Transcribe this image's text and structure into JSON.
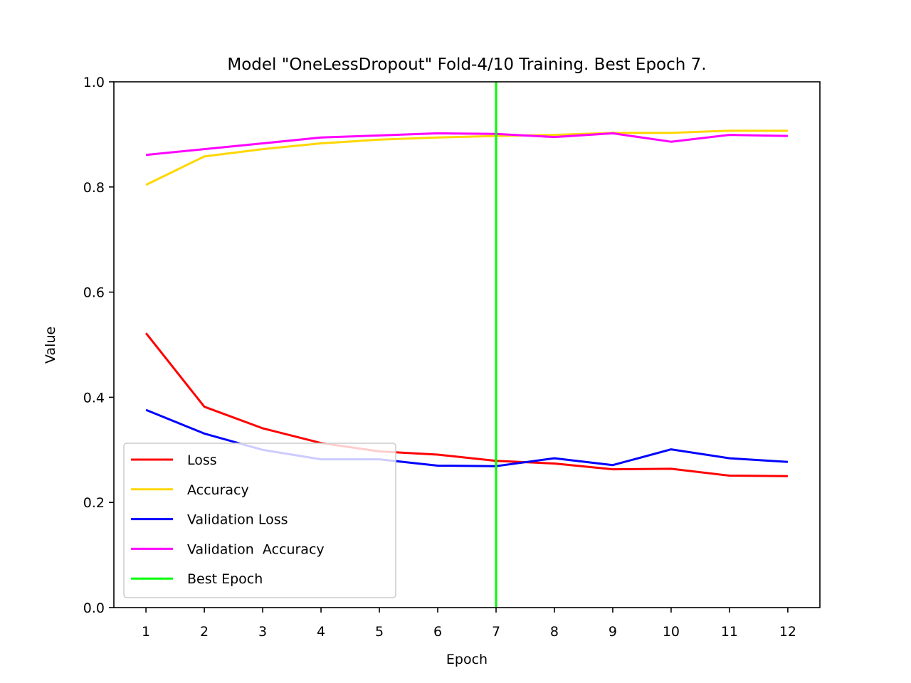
{
  "chart_data": {
    "type": "line",
    "title": "Model \"OneLessDropout\" Fold-4/10 Training. Best Epoch 7.",
    "xlabel": "Epoch",
    "ylabel": "Value",
    "x": [
      1,
      2,
      3,
      4,
      5,
      6,
      7,
      8,
      9,
      10,
      11,
      12
    ],
    "xlim": [
      0.45,
      12.55
    ],
    "ylim": [
      0.0,
      1.0
    ],
    "xticks": [
      "1",
      "2",
      "3",
      "4",
      "5",
      "6",
      "7",
      "8",
      "9",
      "10",
      "11",
      "12"
    ],
    "yticks": [
      "0.0",
      "0.2",
      "0.4",
      "0.6",
      "0.8",
      "1.0"
    ],
    "grid": false,
    "legend_position": "lower-left",
    "series": [
      {
        "name": "Loss",
        "color": "#ff0000",
        "values": [
          0.522,
          0.382,
          0.341,
          0.313,
          0.297,
          0.291,
          0.279,
          0.274,
          0.263,
          0.264,
          0.251,
          0.25
        ]
      },
      {
        "name": "Accuracy",
        "color": "#ffd700",
        "values": [
          0.804,
          0.858,
          0.872,
          0.883,
          0.89,
          0.894,
          0.897,
          0.899,
          0.903,
          0.903,
          0.907,
          0.907
        ]
      },
      {
        "name": "Validation Loss",
        "color": "#0000ff",
        "values": [
          0.376,
          0.331,
          0.3,
          0.282,
          0.282,
          0.27,
          0.269,
          0.284,
          0.271,
          0.301,
          0.284,
          0.277
        ]
      },
      {
        "name": "Validation  Accuracy",
        "color": "#ff00ff",
        "values": [
          0.861,
          0.872,
          0.883,
          0.894,
          0.898,
          0.902,
          0.901,
          0.895,
          0.902,
          0.886,
          0.899,
          0.897
        ]
      }
    ],
    "best_epoch": {
      "name": "Best Epoch",
      "color": "#00ff00",
      "x": 7
    }
  }
}
